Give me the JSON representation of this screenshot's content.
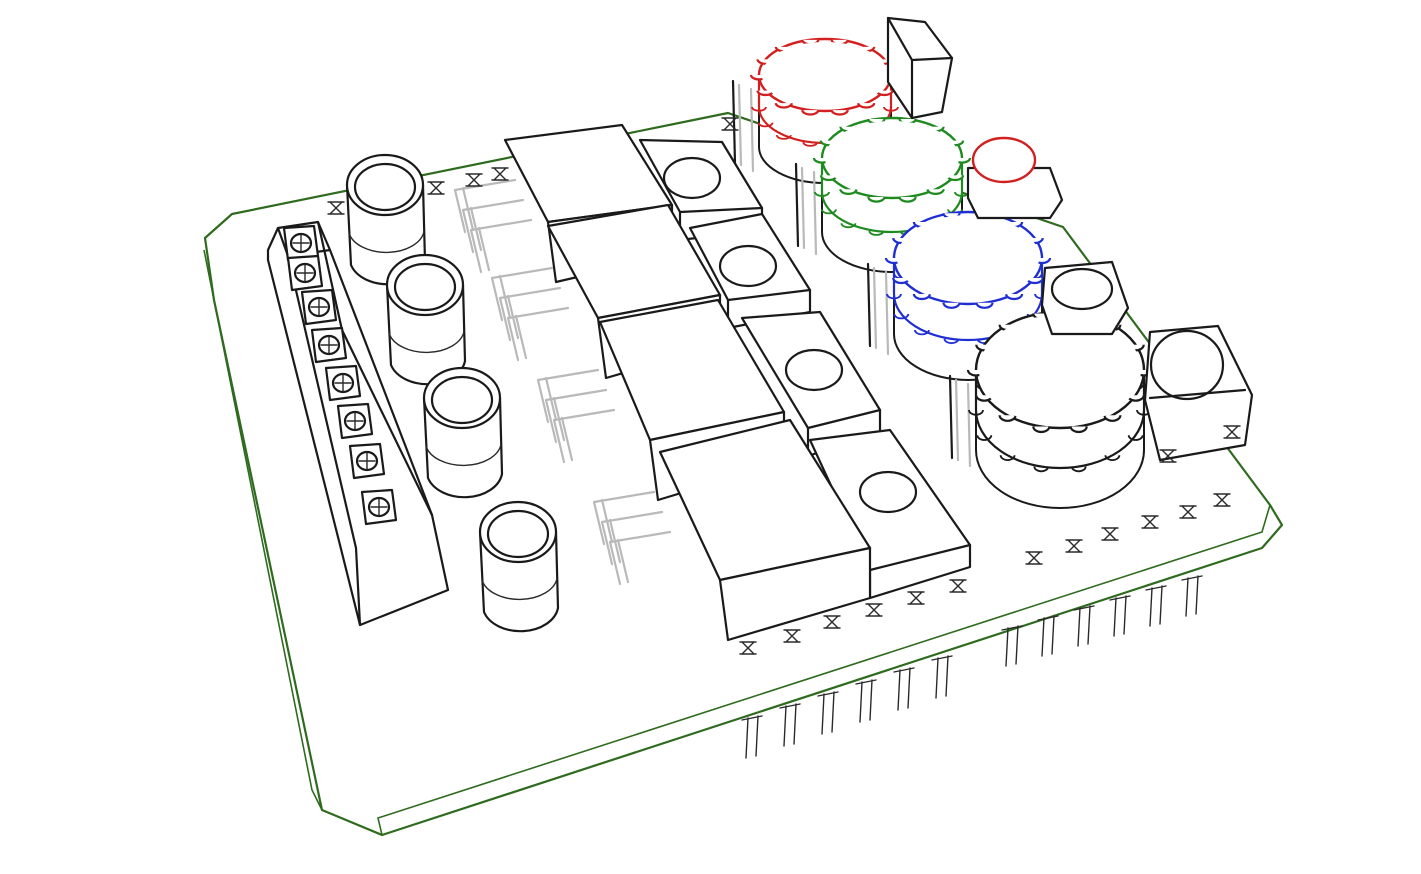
{
  "colors": {
    "board_outline": "#2f6b1f",
    "ink": "#1a1a1a",
    "ghost_ink": "#b9b9b9",
    "gear_red": "#d21f1f",
    "gear_green": "#1f8a1f",
    "gear_blue": "#1f2fd2",
    "button_red": "#d21f1f",
    "background": "#ffffff"
  },
  "components": {
    "terminal_block_screws": 8,
    "electrolytic_capacitors": 4,
    "heatsink_regulators": 4,
    "gear_potentiometers": 4,
    "push_buttons": 3
  }
}
